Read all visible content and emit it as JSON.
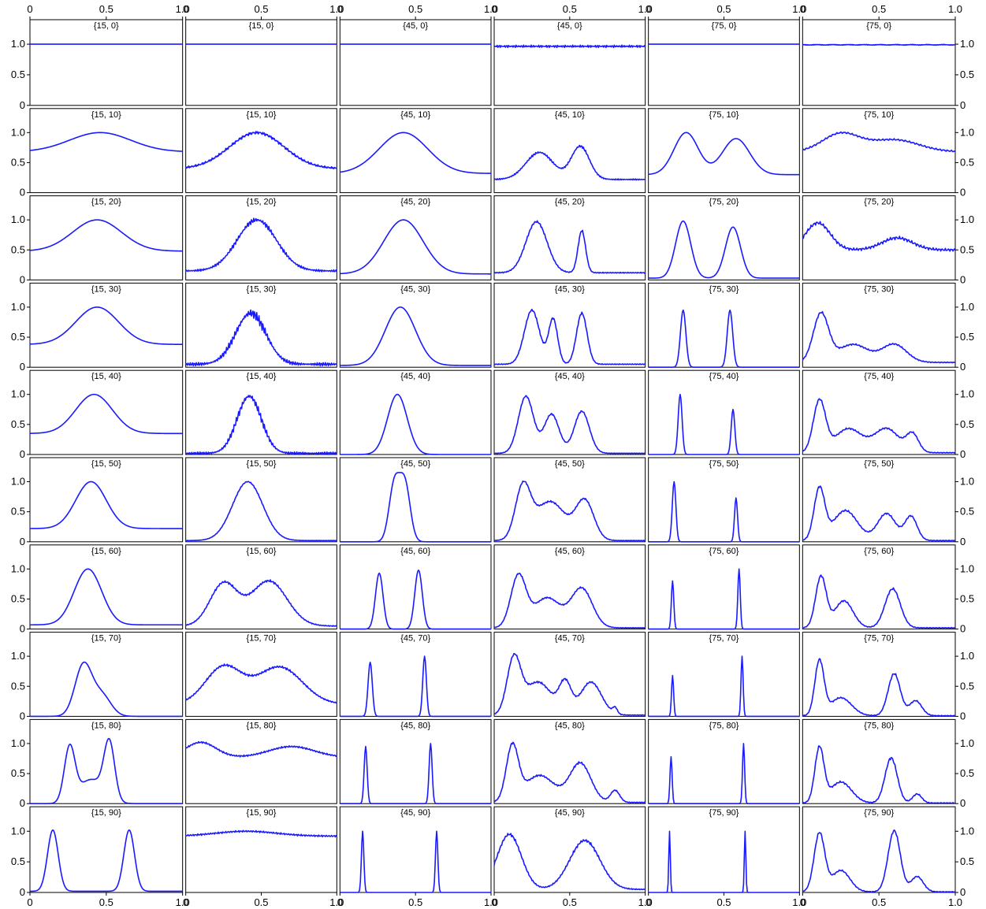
{
  "chart_data": {
    "type": "line",
    "layout": {
      "rows": 10,
      "cols": 6
    },
    "xlim": [
      0,
      1
    ],
    "ylim": [
      0,
      1.4
    ],
    "x_ticks": [
      [
        0,
        "0"
      ],
      [
        0.5,
        "0.5"
      ],
      [
        1,
        "1.0"
      ]
    ],
    "y_ticks": [
      [
        0,
        "0"
      ],
      [
        0.5,
        "0.5"
      ],
      [
        1,
        "1.0"
      ]
    ],
    "line_color": "#1a1aff",
    "panels": [
      {
        "title": "{15, 0}",
        "components": [],
        "base": 1,
        "noise": 0
      },
      {
        "title": "{15, 0}",
        "components": [],
        "base": 1,
        "noise": 0
      },
      {
        "title": "{45, 0}",
        "components": [],
        "base": 1,
        "noise": 0
      },
      {
        "title": "{45, 0}",
        "components": [],
        "base": 0.965,
        "noise": 0.02,
        "freq": 80
      },
      {
        "title": "{75, 0}",
        "components": [],
        "base": 1,
        "noise": 0
      },
      {
        "title": "{75, 0}",
        "components": [],
        "base": 0.99,
        "noise": 0.008,
        "freq": 110
      },
      {
        "title": "{15, 10}",
        "components": [
          [
            0.46,
            0.2,
            0.32
          ]
        ],
        "base": 0.68,
        "noise": 0
      },
      {
        "title": "{15, 10}",
        "components": [
          [
            0.47,
            0.18,
            0.6
          ]
        ],
        "base": 0.4,
        "noise": 0.025,
        "freq": 90
      },
      {
        "title": "{45, 10}",
        "components": [
          [
            0.42,
            0.16,
            0.68
          ]
        ],
        "base": 0.32,
        "noise": 0
      },
      {
        "title": "{45, 10}",
        "components": [
          [
            0.3,
            0.09,
            0.45
          ],
          [
            0.57,
            0.06,
            0.55
          ]
        ],
        "base": 0.22,
        "noise": 0.02,
        "freq": 70
      },
      {
        "title": "{75, 10}",
        "components": [
          [
            0.25,
            0.08,
            0.7
          ],
          [
            0.58,
            0.09,
            0.6
          ]
        ],
        "base": 0.3,
        "noise": 0
      },
      {
        "title": "{75, 10}",
        "components": [
          [
            0.25,
            0.12,
            0.3
          ],
          [
            0.6,
            0.16,
            0.2
          ]
        ],
        "base": 0.68,
        "noise": 0.015,
        "freq": 40
      },
      {
        "title": "{15, 20}",
        "components": [
          [
            0.44,
            0.16,
            0.52
          ]
        ],
        "base": 0.48,
        "noise": 0
      },
      {
        "title": "{15, 20}",
        "components": [
          [
            0.47,
            0.13,
            0.85
          ]
        ],
        "base": 0.15,
        "noise": 0.04,
        "freq": 70
      },
      {
        "title": "{45, 20}",
        "components": [
          [
            0.42,
            0.13,
            0.9
          ]
        ],
        "base": 0.1,
        "noise": 0
      },
      {
        "title": "{45, 20}",
        "components": [
          [
            0.28,
            0.07,
            0.85
          ],
          [
            0.58,
            0.025,
            0.7
          ]
        ],
        "base": 0.12,
        "noise": 0.02,
        "freq": 60
      },
      {
        "title": "{75, 20}",
        "components": [
          [
            0.23,
            0.05,
            0.95
          ],
          [
            0.56,
            0.05,
            0.85
          ]
        ],
        "base": 0.03,
        "noise": 0
      },
      {
        "title": "{75, 20}",
        "components": [
          [
            0.1,
            0.08,
            0.45
          ],
          [
            0.62,
            0.1,
            0.2
          ]
        ],
        "base": 0.5,
        "noise": 0.03,
        "freq": 50
      },
      {
        "title": "{15, 30}",
        "components": [
          [
            0.44,
            0.14,
            0.62
          ]
        ],
        "base": 0.38,
        "noise": 0
      },
      {
        "title": "{15, 30}",
        "components": [
          [
            0.43,
            0.1,
            0.85
          ]
        ],
        "base": 0.05,
        "noise": 0.08,
        "freq": 75
      },
      {
        "title": "{45, 30}",
        "components": [
          [
            0.4,
            0.1,
            0.97
          ]
        ],
        "base": 0.03,
        "noise": 0
      },
      {
        "title": "{45, 30}",
        "components": [
          [
            0.25,
            0.05,
            0.9
          ],
          [
            0.39,
            0.03,
            0.75
          ],
          [
            0.58,
            0.035,
            0.85
          ]
        ],
        "base": 0.05,
        "noise": 0.02,
        "freq": 60
      },
      {
        "title": "{75, 30}",
        "components": [
          [
            0.23,
            0.018,
            0.95
          ],
          [
            0.54,
            0.018,
            0.95
          ]
        ],
        "base": 0.0,
        "noise": 0
      },
      {
        "title": "{75, 30}",
        "components": [
          [
            0.12,
            0.05,
            0.8
          ],
          [
            0.33,
            0.1,
            0.3
          ],
          [
            0.6,
            0.08,
            0.3
          ]
        ],
        "base": 0.08,
        "noise": 0.02,
        "freq": 50
      },
      {
        "title": "{15, 40}",
        "components": [
          [
            0.42,
            0.12,
            0.65
          ]
        ],
        "base": 0.35,
        "noise": 0
      },
      {
        "title": "{15, 40}",
        "components": [
          [
            0.42,
            0.08,
            0.95
          ]
        ],
        "base": 0.02,
        "noise": 0.07,
        "freq": 75
      },
      {
        "title": "{45, 40}",
        "components": [
          [
            0.38,
            0.065,
            1.0
          ]
        ],
        "base": 0.0,
        "noise": 0
      },
      {
        "title": "{45, 40}",
        "components": [
          [
            0.21,
            0.05,
            0.95
          ],
          [
            0.38,
            0.05,
            0.65
          ],
          [
            0.58,
            0.05,
            0.7
          ]
        ],
        "base": 0.02,
        "noise": 0.015,
        "freq": 60
      },
      {
        "title": "{75, 40}",
        "components": [
          [
            0.21,
            0.013,
            1.0
          ],
          [
            0.56,
            0.012,
            0.75
          ]
        ],
        "base": 0.0,
        "noise": 0
      },
      {
        "title": "{75, 40}",
        "components": [
          [
            0.11,
            0.04,
            0.85
          ],
          [
            0.3,
            0.09,
            0.4
          ],
          [
            0.55,
            0.08,
            0.4
          ],
          [
            0.72,
            0.04,
            0.3
          ]
        ],
        "base": 0.03,
        "noise": 0.02,
        "freq": 50
      },
      {
        "title": "{15, 50}",
        "components": [
          [
            0.4,
            0.1,
            0.78
          ]
        ],
        "base": 0.22,
        "noise": 0
      },
      {
        "title": "{15, 50}",
        "components": [
          [
            0.41,
            0.1,
            0.98
          ]
        ],
        "base": 0.02,
        "noise": 0.01,
        "freq": 60
      },
      {
        "title": "{45, 50}",
        "components": [
          [
            0.36,
            0.035,
            0.95
          ],
          [
            0.43,
            0.035,
            0.95
          ]
        ],
        "base": 0.0,
        "noise": 0
      },
      {
        "title": "{45, 50}",
        "components": [
          [
            0.19,
            0.05,
            0.85
          ],
          [
            0.37,
            0.1,
            0.65
          ],
          [
            0.6,
            0.06,
            0.65
          ]
        ],
        "base": 0.02,
        "noise": 0.015,
        "freq": 60
      },
      {
        "title": "{75, 50}",
        "components": [
          [
            0.17,
            0.012,
            1.0
          ],
          [
            0.58,
            0.01,
            0.73
          ]
        ],
        "base": 0.0,
        "noise": 0
      },
      {
        "title": "{75, 50}",
        "components": [
          [
            0.11,
            0.035,
            0.85
          ],
          [
            0.28,
            0.08,
            0.5
          ],
          [
            0.55,
            0.06,
            0.45
          ],
          [
            0.71,
            0.04,
            0.4
          ]
        ],
        "base": 0.02,
        "noise": 0.02,
        "freq": 50
      },
      {
        "title": "{15, 60}",
        "components": [
          [
            0.38,
            0.09,
            0.93
          ]
        ],
        "base": 0.07,
        "noise": 0
      },
      {
        "title": "{15, 60}",
        "components": [
          [
            0.25,
            0.09,
            0.7
          ],
          [
            0.55,
            0.12,
            0.75
          ]
        ],
        "base": 0.05,
        "noise": 0.02,
        "freq": 60
      },
      {
        "title": "{45, 60}",
        "components": [
          [
            0.26,
            0.025,
            0.93
          ],
          [
            0.52,
            0.025,
            0.98
          ]
        ],
        "base": 0.0,
        "noise": 0
      },
      {
        "title": "{45, 60}",
        "components": [
          [
            0.16,
            0.05,
            0.85
          ],
          [
            0.35,
            0.09,
            0.5
          ],
          [
            0.58,
            0.07,
            0.65
          ]
        ],
        "base": 0.02,
        "noise": 0.015,
        "freq": 60
      },
      {
        "title": "{75, 60}",
        "components": [
          [
            0.16,
            0.008,
            0.8
          ],
          [
            0.6,
            0.008,
            1.0
          ]
        ],
        "base": 0.0,
        "noise": 0
      },
      {
        "title": "{75, 60}",
        "components": [
          [
            0.12,
            0.035,
            0.85
          ],
          [
            0.27,
            0.06,
            0.45
          ],
          [
            0.59,
            0.05,
            0.65
          ]
        ],
        "base": 0.02,
        "noise": 0.02,
        "freq": 50
      },
      {
        "title": "{15, 70}",
        "components": [
          [
            0.35,
            0.055,
            0.85
          ],
          [
            0.47,
            0.06,
            0.35
          ]
        ],
        "base": 0.0,
        "noise": 0
      },
      {
        "title": "{15, 70}",
        "components": [
          [
            0.25,
            0.12,
            0.62
          ],
          [
            0.62,
            0.15,
            0.62
          ]
        ],
        "base": 0.2,
        "noise": 0.02,
        "freq": 60
      },
      {
        "title": "{45, 70}",
        "components": [
          [
            0.2,
            0.014,
            0.9
          ],
          [
            0.56,
            0.012,
            1.0
          ]
        ],
        "base": 0.0,
        "noise": 0
      },
      {
        "title": "{45, 70}",
        "components": [
          [
            0.13,
            0.045,
            0.9
          ],
          [
            0.29,
            0.09,
            0.55
          ],
          [
            0.47,
            0.04,
            0.5
          ],
          [
            0.64,
            0.07,
            0.55
          ],
          [
            0.8,
            0.015,
            0.1
          ]
        ],
        "base": 0.02,
        "noise": 0.02,
        "freq": 60
      },
      {
        "title": "{75, 70}",
        "components": [
          [
            0.16,
            0.007,
            0.68
          ],
          [
            0.62,
            0.007,
            1.0
          ]
        ],
        "base": 0.0,
        "noise": 0
      },
      {
        "title": "{75, 70}",
        "components": [
          [
            0.11,
            0.03,
            0.9
          ],
          [
            0.25,
            0.07,
            0.3
          ],
          [
            0.6,
            0.04,
            0.7
          ],
          [
            0.74,
            0.04,
            0.25
          ]
        ],
        "base": 0.01,
        "noise": 0.02,
        "freq": 50
      },
      {
        "title": "{15, 80}",
        "components": [
          [
            0.26,
            0.035,
            0.9
          ],
          [
            0.52,
            0.035,
            0.95
          ],
          [
            0.4,
            0.08,
            0.4
          ]
        ],
        "base": 0.0,
        "noise": 0
      },
      {
        "title": "{15, 80}",
        "components": [
          [
            0.1,
            0.1,
            0.25
          ],
          [
            0.7,
            0.15,
            0.18
          ]
        ],
        "base": 0.77,
        "noise": 0.015,
        "freq": 60
      },
      {
        "title": "{45, 80}",
        "components": [
          [
            0.17,
            0.01,
            0.95
          ],
          [
            0.6,
            0.01,
            1.0
          ]
        ],
        "base": 0.0,
        "noise": 0
      },
      {
        "title": "{45, 80}",
        "components": [
          [
            0.12,
            0.04,
            0.9
          ],
          [
            0.3,
            0.1,
            0.45
          ],
          [
            0.57,
            0.07,
            0.65
          ],
          [
            0.8,
            0.03,
            0.2
          ]
        ],
        "base": 0.02,
        "noise": 0.02,
        "freq": 60
      },
      {
        "title": "{75, 80}",
        "components": [
          [
            0.15,
            0.007,
            0.78
          ],
          [
            0.63,
            0.007,
            1.0
          ]
        ],
        "base": 0.0,
        "noise": 0
      },
      {
        "title": "{75, 80}",
        "components": [
          [
            0.11,
            0.03,
            0.9
          ],
          [
            0.25,
            0.07,
            0.35
          ],
          [
            0.58,
            0.04,
            0.75
          ],
          [
            0.75,
            0.03,
            0.15
          ]
        ],
        "base": 0.01,
        "noise": 0.025,
        "freq": 50
      },
      {
        "title": "{15, 90}",
        "components": [
          [
            0.15,
            0.035,
            1.0
          ],
          [
            0.65,
            0.035,
            1.0
          ]
        ],
        "base": 0.02,
        "noise": 0
      },
      {
        "title": "{15, 90}",
        "components": [
          [
            0.4,
            0.2,
            0.08
          ]
        ],
        "base": 0.92,
        "noise": 0.015,
        "freq": 60
      },
      {
        "title": "{45, 90}",
        "components": [
          [
            0.15,
            0.008,
            1.0
          ],
          [
            0.64,
            0.008,
            1.0
          ]
        ],
        "base": 0.0,
        "noise": 0
      },
      {
        "title": "{45, 90}",
        "components": [
          [
            0.1,
            0.08,
            0.9
          ],
          [
            0.6,
            0.1,
            0.8
          ]
        ],
        "base": 0.05,
        "noise": 0.025,
        "freq": 60
      },
      {
        "title": "{75, 90}",
        "components": [
          [
            0.14,
            0.005,
            1.0
          ],
          [
            0.64,
            0.005,
            1.0
          ]
        ],
        "base": 0.0,
        "noise": 0
      },
      {
        "title": "{75, 90}",
        "components": [
          [
            0.11,
            0.035,
            0.95
          ],
          [
            0.25,
            0.06,
            0.35
          ],
          [
            0.6,
            0.04,
            1.0
          ],
          [
            0.75,
            0.04,
            0.25
          ]
        ],
        "base": 0.01,
        "noise": 0.02,
        "freq": 50
      }
    ]
  }
}
